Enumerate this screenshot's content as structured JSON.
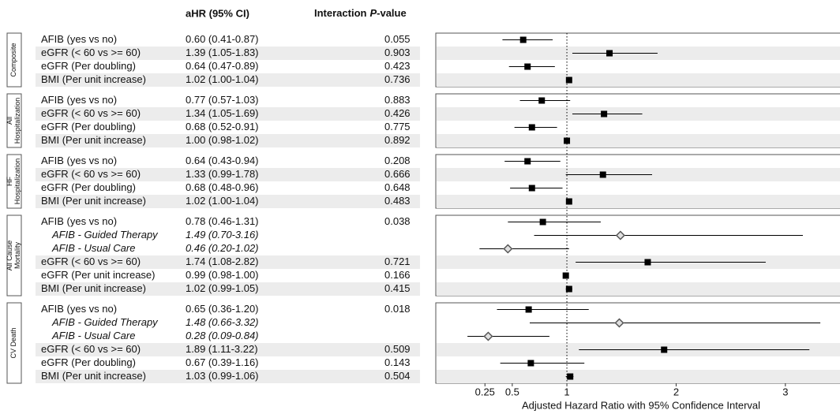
{
  "chart_data": {
    "type": "forest",
    "headers": {
      "ci": "aHR (95% CI)",
      "p": [
        "Interaction",
        "P",
        "-value"
      ]
    },
    "x_label": "Adjusted Hazard Ratio with 95% Confidence Interval",
    "xlim": [
      -0.2,
      3.5
    ],
    "xticks": [
      0.25,
      0.5,
      1,
      2,
      3
    ],
    "ref_line": 1,
    "colors": {
      "square": "#000000",
      "diamond_fill": "#e0e0e0",
      "diamond_stroke": "#555555",
      "shade": "#ececec"
    },
    "groups": [
      {
        "name": [
          "Composite"
        ],
        "rows": [
          {
            "label": "AFIB (yes vs no)",
            "hr": 0.6,
            "lo": 0.41,
            "hi": 0.87,
            "ci_label": "0.60 (0.41-0.87)",
            "p": "0.055"
          },
          {
            "label": "eGFR (< 60 vs >= 60)",
            "hr": 1.39,
            "lo": 1.05,
            "hi": 1.83,
            "ci_label": "1.39 (1.05-1.83)",
            "p": "0.903",
            "shaded": true
          },
          {
            "label": "eGFR (Per doubling)",
            "hr": 0.64,
            "lo": 0.47,
            "hi": 0.89,
            "ci_label": "0.64 (0.47-0.89)",
            "p": "0.423"
          },
          {
            "label": "BMI (Per unit increase)",
            "hr": 1.02,
            "lo": 1.0,
            "hi": 1.04,
            "ci_label": "1.02 (1.00-1.04)",
            "p": "0.736",
            "shaded": true
          }
        ]
      },
      {
        "name": [
          "All",
          "Hospitalization"
        ],
        "rows": [
          {
            "label": "AFIB (yes vs no)",
            "hr": 0.77,
            "lo": 0.57,
            "hi": 1.03,
            "ci_label": "0.77 (0.57-1.03)",
            "p": "0.883"
          },
          {
            "label": "eGFR (< 60 vs >= 60)",
            "hr": 1.34,
            "lo": 1.05,
            "hi": 1.69,
            "ci_label": "1.34 (1.05-1.69)",
            "p": "0.426",
            "shaded": true
          },
          {
            "label": "eGFR (Per doubling)",
            "hr": 0.68,
            "lo": 0.52,
            "hi": 0.91,
            "ci_label": "0.68 (0.52-0.91)",
            "p": "0.775"
          },
          {
            "label": "BMI (Per unit increase)",
            "hr": 1.0,
            "lo": 0.98,
            "hi": 1.02,
            "ci_label": "1.00 (0.98-1.02)",
            "p": "0.892",
            "shaded": true
          }
        ]
      },
      {
        "name": [
          "HF",
          "Hospitalization"
        ],
        "rows": [
          {
            "label": "AFIB (yes vs no)",
            "hr": 0.64,
            "lo": 0.43,
            "hi": 0.94,
            "ci_label": "0.64 (0.43-0.94)",
            "p": "0.208"
          },
          {
            "label": "eGFR (< 60 vs >= 60)",
            "hr": 1.33,
            "lo": 0.99,
            "hi": 1.78,
            "ci_label": "1.33 (0.99-1.78)",
            "p": "0.666",
            "shaded": true
          },
          {
            "label": "eGFR (Per doubling)",
            "hr": 0.68,
            "lo": 0.48,
            "hi": 0.96,
            "ci_label": "0.68 (0.48-0.96)",
            "p": "0.648"
          },
          {
            "label": "BMI (Per unit increase)",
            "hr": 1.02,
            "lo": 1.0,
            "hi": 1.04,
            "ci_label": "1.02 (1.00-1.04)",
            "p": "0.483",
            "shaded": true
          }
        ]
      },
      {
        "name": [
          "All Cause",
          "Mortality"
        ],
        "rows": [
          {
            "label": "AFIB (yes vs no)",
            "hr": 0.78,
            "lo": 0.46,
            "hi": 1.31,
            "ci_label": "0.78 (0.46-1.31)",
            "p": "0.038"
          },
          {
            "label": "AFIB - Guided Therapy",
            "hr": 1.49,
            "lo": 0.7,
            "hi": 3.16,
            "ci_label": "1.49 (0.70-3.16)",
            "subgroup": true
          },
          {
            "label": "AFIB - Usual Care",
            "hr": 0.46,
            "lo": 0.2,
            "hi": 1.02,
            "ci_label": "0.46 (0.20-1.02)",
            "subgroup": true
          },
          {
            "label": "eGFR (< 60 vs >= 60)",
            "hr": 1.74,
            "lo": 1.08,
            "hi": 2.82,
            "ci_label": "1.74 (1.08-2.82)",
            "p": "0.721",
            "shaded": true
          },
          {
            "label": "eGFR (Per unit increase)",
            "hr": 0.99,
            "lo": 0.98,
            "hi": 1.0,
            "ci_label": "0.99 (0.98-1.00)",
            "p": "0.166"
          },
          {
            "label": "BMI (Per unit increase)",
            "hr": 1.02,
            "lo": 0.99,
            "hi": 1.05,
            "ci_label": "1.02 (0.99-1.05)",
            "p": "0.415",
            "shaded": true
          }
        ]
      },
      {
        "name": [
          "CV Death"
        ],
        "rows": [
          {
            "label": "AFIB (yes vs no)",
            "hr": 0.65,
            "lo": 0.36,
            "hi": 1.2,
            "ci_label": "0.65 (0.36-1.20)",
            "p": "0.018"
          },
          {
            "label": "AFIB - Guided Therapy",
            "hr": 1.48,
            "lo": 0.66,
            "hi": 3.32,
            "ci_label": "1.48 (0.66-3.32)",
            "subgroup": true
          },
          {
            "label": "AFIB - Usual Care",
            "hr": 0.28,
            "lo": 0.09,
            "hi": 0.84,
            "ci_label": "0.28 (0.09-0.84)",
            "subgroup": true
          },
          {
            "label": "eGFR (< 60 vs >= 60)",
            "hr": 1.89,
            "lo": 1.11,
            "hi": 3.22,
            "ci_label": "1.89 (1.11-3.22)",
            "p": "0.509",
            "shaded": true
          },
          {
            "label": "eGFR (Per doubling)",
            "hr": 0.67,
            "lo": 0.39,
            "hi": 1.16,
            "ci_label": "0.67 (0.39-1.16)",
            "p": "0.143"
          },
          {
            "label": "BMI (Per unit increase)",
            "hr": 1.03,
            "lo": 0.99,
            "hi": 1.06,
            "ci_label": "1.03 (0.99-1.06)",
            "p": "0.504",
            "shaded": true
          }
        ]
      }
    ]
  }
}
